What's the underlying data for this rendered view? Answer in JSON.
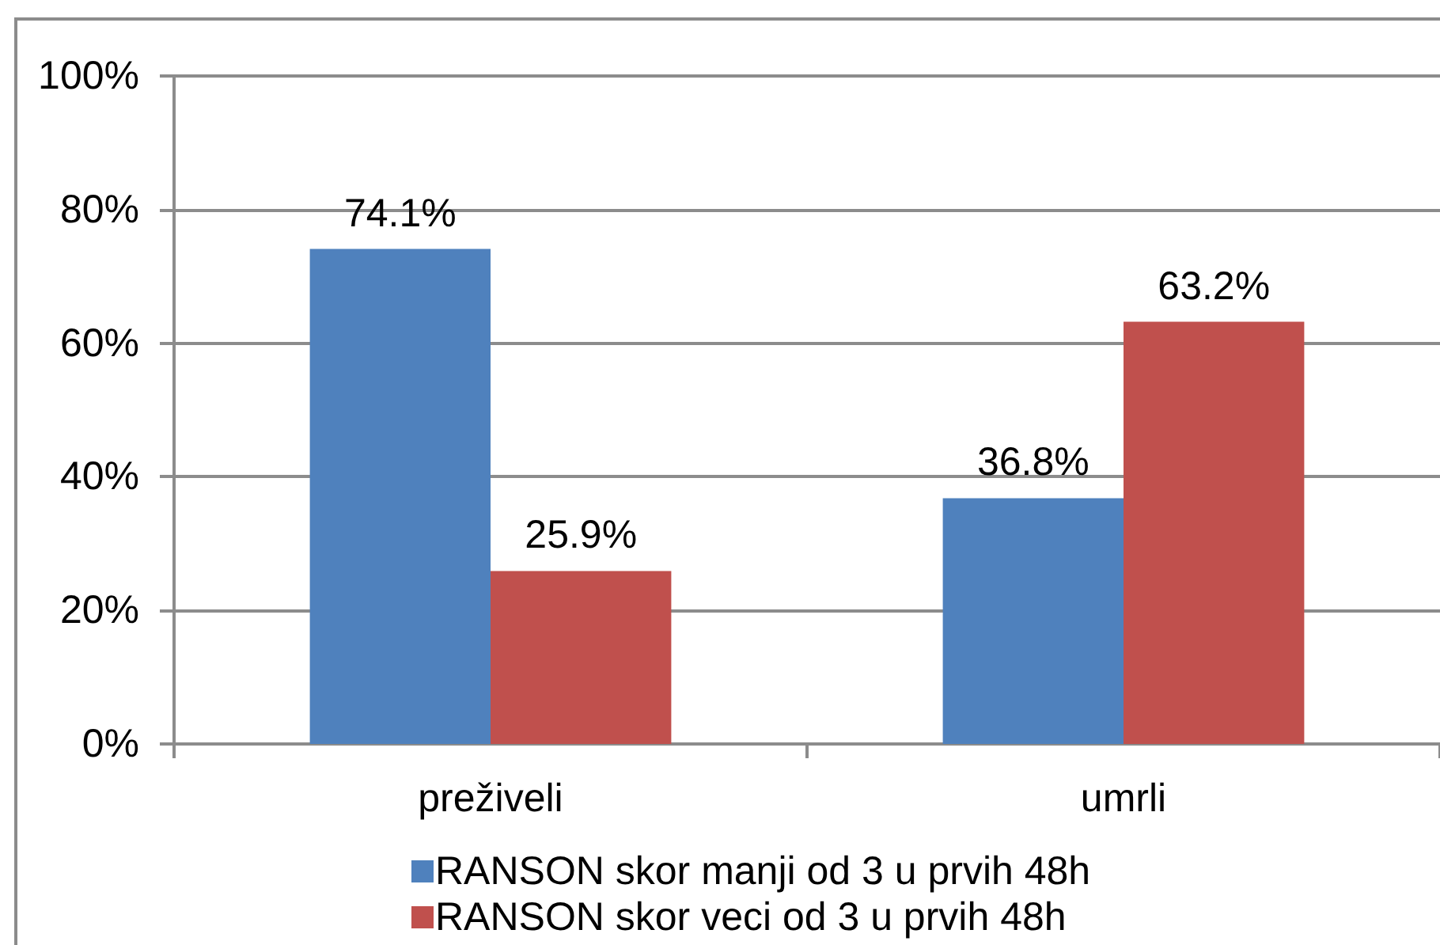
{
  "chart_data": {
    "type": "bar",
    "categories": [
      "preživeli",
      "umrli"
    ],
    "series": [
      {
        "name": "RANSON skor manji od 3 u prvih 48h",
        "color": "#4f81bd",
        "values": [
          74.1,
          36.8
        ],
        "value_labels": [
          "74.1%",
          "36.8%"
        ]
      },
      {
        "name": "RANSON skor veci od 3 u prvih 48h",
        "color": "#c0504d",
        "values": [
          25.9,
          63.2
        ],
        "value_labels": [
          "25.9%",
          "63.2%"
        ]
      }
    ],
    "ylim": [
      0,
      100
    ],
    "yticks": [
      {
        "value": 0,
        "label": "0%"
      },
      {
        "value": 20,
        "label": "20%"
      },
      {
        "value": 40,
        "label": "40%"
      },
      {
        "value": 60,
        "label": "60%"
      },
      {
        "value": 80,
        "label": "80%"
      },
      {
        "value": 100,
        "label": "100%"
      }
    ],
    "grid": "y",
    "legend": "bottom"
  }
}
